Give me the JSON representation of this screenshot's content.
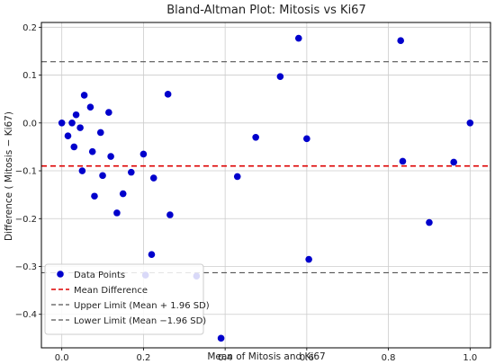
{
  "chart_data": {
    "type": "scatter",
    "title": "Bland-Altman Plot: Mitosis vs Ki67",
    "xlabel": "Mean of  Mitosis and Ki67",
    "ylabel": "Difference ( Mitosis − Ki67)",
    "xlim": [
      -0.05,
      1.05
    ],
    "ylim": [
      -0.47,
      0.21
    ],
    "xticks": [
      0.0,
      0.2,
      0.4,
      0.6,
      0.8,
      1.0
    ],
    "xtick_labels": [
      "0.0",
      "0.2",
      "0.4",
      "0.6",
      "0.8",
      "1.0"
    ],
    "yticks": [
      -0.4,
      -0.3,
      -0.2,
      -0.1,
      0.0,
      0.1,
      0.2
    ],
    "ytick_labels": [
      "−0.4",
      "−0.3",
      "−0.2",
      "−0.1",
      "0.0",
      "0.1",
      "0.2"
    ],
    "grid": true,
    "legend_position": "bottom-left",
    "colors": {
      "points": "#0000cc",
      "mean_line": "#dd0000",
      "limit_lines": "#555555",
      "grid": "#cccccc",
      "axes": "#000000"
    },
    "series": [
      {
        "name": "Data Points",
        "kind": "points",
        "points": [
          [
            0.0,
            0.0
          ],
          [
            0.015,
            -0.027
          ],
          [
            0.025,
            0.0
          ],
          [
            0.03,
            -0.05
          ],
          [
            0.035,
            0.017
          ],
          [
            0.045,
            -0.01
          ],
          [
            0.05,
            -0.1
          ],
          [
            0.055,
            0.058
          ],
          [
            0.07,
            0.033
          ],
          [
            0.075,
            -0.06
          ],
          [
            0.08,
            -0.153
          ],
          [
            0.095,
            -0.02
          ],
          [
            0.1,
            -0.11
          ],
          [
            0.115,
            0.022
          ],
          [
            0.12,
            -0.07
          ],
          [
            0.135,
            -0.188
          ],
          [
            0.15,
            -0.148
          ],
          [
            0.17,
            -0.103
          ],
          [
            0.2,
            -0.065
          ],
          [
            0.205,
            -0.318
          ],
          [
            0.22,
            -0.275
          ],
          [
            0.225,
            -0.115
          ],
          [
            0.26,
            0.06
          ],
          [
            0.265,
            -0.192
          ],
          [
            0.33,
            -0.32
          ],
          [
            0.39,
            -0.45
          ],
          [
            0.43,
            -0.112
          ],
          [
            0.475,
            -0.03
          ],
          [
            0.535,
            0.097
          ],
          [
            0.58,
            0.177
          ],
          [
            0.6,
            -0.033
          ],
          [
            0.605,
            -0.285
          ],
          [
            0.83,
            0.172
          ],
          [
            0.835,
            -0.08
          ],
          [
            0.9,
            -0.208
          ],
          [
            0.96,
            -0.082
          ],
          [
            1.0,
            0.0
          ]
        ]
      },
      {
        "name": "Mean Difference",
        "kind": "hline",
        "y": -0.09
      },
      {
        "name": "Upper Limit (Mean + 1.96 SD)",
        "kind": "hline",
        "y": 0.128
      },
      {
        "name": "Lower Limit (Mean −1.96 SD)",
        "kind": "hline",
        "y": -0.313
      }
    ]
  }
}
